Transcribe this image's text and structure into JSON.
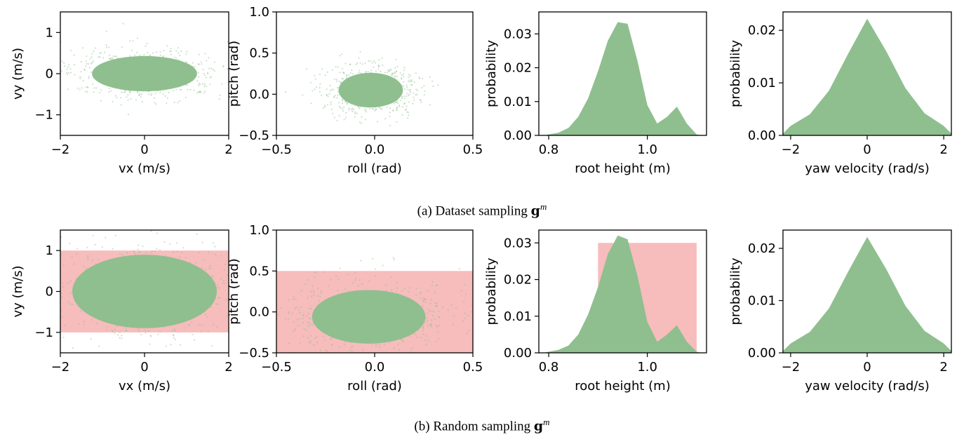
{
  "captions": {
    "a": {
      "text": "(a) Dataset sampling ",
      "symbol": "g",
      "sup": "m"
    },
    "b": {
      "text": "(b) Random sampling ",
      "symbol": "g",
      "sup": "m"
    }
  },
  "colors": {
    "green": "#8fbf8f",
    "range_fill": "#f4a6a6"
  },
  "chart_data": [
    {
      "id": "a-vel",
      "row": "a",
      "col": 0,
      "type": "scatter",
      "xlabel": "vx (m/s)",
      "ylabel": "vy (m/s)",
      "xlim": [
        -2,
        2
      ],
      "ylim": [
        -1.5,
        1.5
      ],
      "xticks": [
        -2,
        0,
        2
      ],
      "xtick_labels": [
        "−2",
        "0",
        "2"
      ],
      "yticks": [
        -1,
        0,
        1
      ],
      "ytick_labels": [
        "−1",
        "0",
        "1"
      ],
      "cloud": {
        "cx": 0.0,
        "cy": 0.0,
        "rx": 1.6,
        "ry": 0.55
      }
    },
    {
      "id": "a-ori",
      "row": "a",
      "col": 1,
      "type": "scatter",
      "xlabel": "roll (rad)",
      "ylabel": "pitch (rad)",
      "xlim": [
        -0.5,
        0.5
      ],
      "ylim": [
        -0.5,
        1.0
      ],
      "xticks": [
        -0.5,
        0.0,
        0.5
      ],
      "xtick_labels": [
        "−0.5",
        "0.0",
        "0.5"
      ],
      "yticks": [
        -0.5,
        0.0,
        0.5,
        1.0
      ],
      "ytick_labels": [
        "−0.5",
        "0.0",
        "0.5",
        "1.0"
      ],
      "cloud": {
        "cx": -0.02,
        "cy": 0.05,
        "rx": 0.21,
        "ry": 0.27
      }
    },
    {
      "id": "a-height",
      "row": "a",
      "col": 2,
      "type": "histogram",
      "xlabel": "root height (m)",
      "ylabel": "probability",
      "xlim": [
        0.78,
        1.12
      ],
      "ylim": [
        0,
        0.0365
      ],
      "xticks": [
        0.8,
        1.0
      ],
      "xtick_labels": [
        "0.8",
        "1.0"
      ],
      "yticks": [
        0.0,
        0.01,
        0.02,
        0.03
      ],
      "ytick_labels": [
        "0.00",
        "0.01",
        "0.02",
        "0.03"
      ],
      "bins": {
        "x": [
          0.8,
          0.82,
          0.84,
          0.86,
          0.88,
          0.9,
          0.92,
          0.94,
          0.96,
          0.98,
          1.0,
          1.02,
          1.04,
          1.06,
          1.08,
          1.1
        ],
        "y": [
          0.0003,
          0.0008,
          0.0022,
          0.0055,
          0.011,
          0.019,
          0.028,
          0.0335,
          0.033,
          0.022,
          0.009,
          0.0035,
          0.0055,
          0.0085,
          0.0035,
          0.0003
        ]
      }
    },
    {
      "id": "a-yaw",
      "row": "a",
      "col": 3,
      "type": "histogram",
      "xlabel": "yaw velocity (rad/s)",
      "ylabel": "probability",
      "xlim": [
        -2.2,
        2.2
      ],
      "ylim": [
        0,
        0.0235
      ],
      "xticks": [
        -2,
        0,
        2
      ],
      "xtick_labels": [
        "−2",
        "0",
        "2"
      ],
      "yticks": [
        0.0,
        0.01,
        0.02
      ],
      "ytick_labels": [
        "0.00",
        "0.01",
        "0.02"
      ],
      "bins": {
        "x": [
          -2.0,
          -1.5,
          -1.0,
          -0.5,
          0.0,
          0.5,
          1.0,
          1.5,
          2.0
        ],
        "y": [
          0.0018,
          0.004,
          0.0085,
          0.0155,
          0.0222,
          0.016,
          0.009,
          0.0042,
          0.0018
        ]
      }
    },
    {
      "id": "b-vel",
      "row": "b",
      "col": 0,
      "type": "scatter",
      "xlabel": "vx (m/s)",
      "ylabel": "vy (m/s)",
      "xlim": [
        -2,
        2
      ],
      "ylim": [
        -1.5,
        1.5
      ],
      "xticks": [
        -2,
        0,
        2
      ],
      "xtick_labels": [
        "−2",
        "0",
        "2"
      ],
      "yticks": [
        -1,
        0,
        1
      ],
      "ytick_labels": [
        "−1",
        "0",
        "1"
      ],
      "range_box": {
        "x": [
          -2,
          2
        ],
        "y": [
          -1,
          1
        ]
      },
      "cloud": {
        "cx": 0.0,
        "cy": 0.0,
        "rx": 2.2,
        "ry": 1.15
      }
    },
    {
      "id": "b-ori",
      "row": "b",
      "col": 1,
      "type": "scatter",
      "xlabel": "roll (rad)",
      "ylabel": "pitch (rad)",
      "xlim": [
        -0.5,
        0.5
      ],
      "ylim": [
        -0.5,
        1.0
      ],
      "xticks": [
        -0.5,
        0.0,
        0.5
      ],
      "xtick_labels": [
        "−0.5",
        "0.0",
        "0.5"
      ],
      "yticks": [
        -0.5,
        0.0,
        0.5,
        1.0
      ],
      "ytick_labels": [
        "−0.5",
        "0.0",
        "0.5",
        "1.0"
      ],
      "range_box": {
        "x": [
          -0.5,
          0.5
        ],
        "y": [
          -0.5,
          0.5
        ]
      },
      "cloud": {
        "cx": -0.03,
        "cy": -0.06,
        "rx": 0.37,
        "ry": 0.42
      }
    },
    {
      "id": "b-height",
      "row": "b",
      "col": 2,
      "type": "histogram",
      "xlabel": "root height (m)",
      "ylabel": "probability",
      "xlim": [
        0.78,
        1.12
      ],
      "ylim": [
        0,
        0.0335
      ],
      "xticks": [
        0.8,
        1.0
      ],
      "xtick_labels": [
        "0.8",
        "1.0"
      ],
      "yticks": [
        0.0,
        0.01,
        0.02,
        0.03
      ],
      "ytick_labels": [
        "0.00",
        "0.01",
        "0.02",
        "0.03"
      ],
      "range_box": {
        "x": [
          0.9,
          1.1
        ],
        "y": [
          0,
          0.03
        ]
      },
      "bins": {
        "x": [
          0.8,
          0.82,
          0.84,
          0.86,
          0.88,
          0.9,
          0.92,
          0.94,
          0.96,
          0.98,
          1.0,
          1.02,
          1.04,
          1.06,
          1.08,
          1.1
        ],
        "y": [
          0.0003,
          0.0008,
          0.002,
          0.005,
          0.0105,
          0.018,
          0.027,
          0.032,
          0.031,
          0.021,
          0.0085,
          0.003,
          0.005,
          0.0075,
          0.003,
          0.0003
        ]
      }
    },
    {
      "id": "b-yaw",
      "row": "b",
      "col": 3,
      "type": "histogram",
      "xlabel": "yaw velocity (rad/s)",
      "ylabel": "probability",
      "xlim": [
        -2.2,
        2.2
      ],
      "ylim": [
        0,
        0.0235
      ],
      "xticks": [
        -2,
        0,
        2
      ],
      "xtick_labels": [
        "−2",
        "0",
        "2"
      ],
      "yticks": [
        0.0,
        0.01,
        0.02
      ],
      "ytick_labels": [
        "0.00",
        "0.01",
        "0.02"
      ],
      "bins": {
        "x": [
          -2.0,
          -1.5,
          -1.0,
          -0.5,
          0.0,
          0.5,
          1.0,
          1.5,
          2.0
        ],
        "y": [
          0.0018,
          0.004,
          0.0085,
          0.0155,
          0.0222,
          0.016,
          0.009,
          0.0042,
          0.0018
        ]
      }
    }
  ]
}
